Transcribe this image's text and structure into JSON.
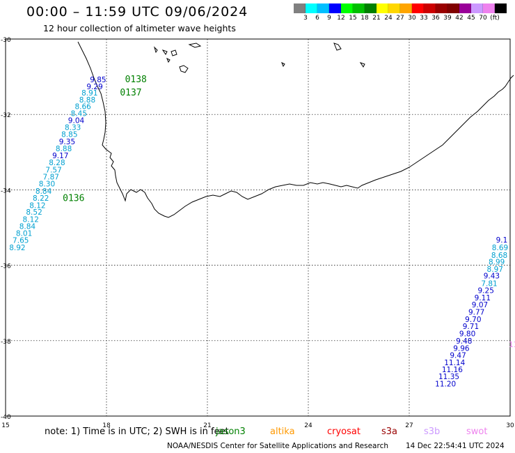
{
  "header": {
    "title": "00:00 – 11:59 UTC 09/06/2024",
    "subtitle": "12 hour collection of altimeter wave heights"
  },
  "legend": {
    "colors": [
      "#808080",
      "#00ffff",
      "#00bfff",
      "#0000ff",
      "#00ff00",
      "#00c000",
      "#008000",
      "#ffff00",
      "#ffd700",
      "#ffa500",
      "#ff0000",
      "#cc0000",
      "#990000",
      "#800000",
      "#990099",
      "#cc99ff",
      "#ee82ee",
      "#000000"
    ],
    "labels": [
      "3",
      "6",
      "9",
      "12",
      "15",
      "18",
      "21",
      "24",
      "27",
      "30",
      "33",
      "36",
      "39",
      "42",
      "45",
      "70",
      "(ft)"
    ]
  },
  "axes": {
    "lon_labels": [
      "15",
      "18",
      "21",
      "24",
      "27",
      "30"
    ],
    "lat_labels": [
      "-30",
      "-32",
      "-34",
      "-36",
      "-38",
      "-40"
    ]
  },
  "map_data": {
    "lon_range": [
      15,
      30
    ],
    "lat_range": [
      -40,
      -30
    ],
    "pass_labels": [
      {
        "text": "0138",
        "lon": 18.55,
        "lat": -31.15
      },
      {
        "text": "0137",
        "lon": 18.4,
        "lat": -31.5
      },
      {
        "text": "0136",
        "lon": 16.7,
        "lat": -34.3
      }
    ],
    "track_west": [
      {
        "v": "9.85",
        "lon": 17.75,
        "lat": -31.15,
        "c": "#0000cc"
      },
      {
        "v": "9.29",
        "lon": 17.65,
        "lat": -31.33,
        "c": "#0000cc"
      },
      {
        "v": "8.91",
        "lon": 17.5,
        "lat": -31.5,
        "c": "#00a0d0"
      },
      {
        "v": "8.88",
        "lon": 17.43,
        "lat": -31.68,
        "c": "#00a0d0"
      },
      {
        "v": "8.66",
        "lon": 17.3,
        "lat": -31.86,
        "c": "#00a0d0"
      },
      {
        "v": "8.45",
        "lon": 17.18,
        "lat": -32.04,
        "c": "#00a0d0"
      },
      {
        "v": "9.04",
        "lon": 17.1,
        "lat": -32.23,
        "c": "#0000cc"
      },
      {
        "v": "8.33",
        "lon": 17.0,
        "lat": -32.41,
        "c": "#00a0d0"
      },
      {
        "v": "8.85",
        "lon": 16.9,
        "lat": -32.6,
        "c": "#00a0d0"
      },
      {
        "v": "9.35",
        "lon": 16.83,
        "lat": -32.79,
        "c": "#0000cc"
      },
      {
        "v": "8.88",
        "lon": 16.73,
        "lat": -32.98,
        "c": "#00a0d0"
      },
      {
        "v": "9.17",
        "lon": 16.63,
        "lat": -33.16,
        "c": "#0000cc"
      },
      {
        "v": "8.28",
        "lon": 16.53,
        "lat": -33.35,
        "c": "#00a0d0"
      },
      {
        "v": "7.57",
        "lon": 16.43,
        "lat": -33.54,
        "c": "#00a0d0"
      },
      {
        "v": "7.87",
        "lon": 16.35,
        "lat": -33.72,
        "c": "#00a0d0"
      },
      {
        "v": "8.30",
        "lon": 16.23,
        "lat": -33.91,
        "c": "#00a0d0"
      },
      {
        "v": "8.84",
        "lon": 16.13,
        "lat": -34.1,
        "c": "#00a0d0"
      },
      {
        "v": "8.22",
        "lon": 16.05,
        "lat": -34.29,
        "c": "#00a0d0"
      },
      {
        "v": "8.12",
        "lon": 15.95,
        "lat": -34.48,
        "c": "#00a0d0"
      },
      {
        "v": "8.52",
        "lon": 15.85,
        "lat": -34.66,
        "c": "#00a0d0"
      },
      {
        "v": "8.12",
        "lon": 15.75,
        "lat": -34.85,
        "c": "#00a0d0"
      },
      {
        "v": "8.84",
        "lon": 15.65,
        "lat": -35.04,
        "c": "#00a0d0"
      },
      {
        "v": "8.01",
        "lon": 15.55,
        "lat": -35.22,
        "c": "#00a0d0"
      },
      {
        "v": "7.65",
        "lon": 15.45,
        "lat": -35.41,
        "c": "#00a0d0"
      },
      {
        "v": "8.92",
        "lon": 15.35,
        "lat": -35.6,
        "c": "#00a0d0"
      }
    ],
    "track_east": [
      {
        "v": "9.1",
        "lon": 29.75,
        "lat": -35.4,
        "c": "#0000cc"
      },
      {
        "v": "8.69",
        "lon": 29.7,
        "lat": -35.6,
        "c": "#00a0d0"
      },
      {
        "v": "8.68",
        "lon": 29.68,
        "lat": -35.8,
        "c": "#00a0d0"
      },
      {
        "v": "8.99",
        "lon": 29.6,
        "lat": -35.98,
        "c": "#00a0d0"
      },
      {
        "v": "8.97",
        "lon": 29.55,
        "lat": -36.17,
        "c": "#00a0d0"
      },
      {
        "v": "9.43",
        "lon": 29.45,
        "lat": -36.35,
        "c": "#0000cc"
      },
      {
        "v": "7.81",
        "lon": 29.38,
        "lat": -36.55,
        "c": "#00a0d0"
      },
      {
        "v": "9.25",
        "lon": 29.28,
        "lat": -36.74,
        "c": "#0000cc"
      },
      {
        "v": "9.11",
        "lon": 29.18,
        "lat": -36.93,
        "c": "#0000cc"
      },
      {
        "v": "9.07",
        "lon": 29.1,
        "lat": -37.12,
        "c": "#0000cc"
      },
      {
        "v": "9.77",
        "lon": 29.0,
        "lat": -37.31,
        "c": "#0000cc"
      },
      {
        "v": "9.70",
        "lon": 28.9,
        "lat": -37.5,
        "c": "#0000cc"
      },
      {
        "v": "9.71",
        "lon": 28.83,
        "lat": -37.69,
        "c": "#0000cc"
      },
      {
        "v": "9.80",
        "lon": 28.73,
        "lat": -37.88,
        "c": "#0000cc"
      },
      {
        "v": "9.48",
        "lon": 28.63,
        "lat": -38.08,
        "c": "#0000cc"
      },
      {
        "v": "9.96",
        "lon": 28.55,
        "lat": -38.27,
        "c": "#0000cc"
      },
      {
        "v": "9.47",
        "lon": 28.45,
        "lat": -38.46,
        "c": "#0000cc"
      },
      {
        "v": "11.14",
        "lon": 28.35,
        "lat": -38.65,
        "c": "#0000cc"
      },
      {
        "v": "11.16",
        "lon": 28.28,
        "lat": -38.84,
        "c": "#0000cc"
      },
      {
        "v": "11.35",
        "lon": 28.18,
        "lat": -39.02,
        "c": "#0000cc"
      },
      {
        "v": "11.20",
        "lon": 28.08,
        "lat": -39.21,
        "c": "#0000cc"
      }
    ]
  },
  "footer": {
    "note": "note: 1) Time is in UTC; 2) SWH is in feet",
    "satellites": [
      {
        "name": "jason3",
        "color": "#008000"
      },
      {
        "name": "altika",
        "color": "#ff9900"
      },
      {
        "name": "cryosat",
        "color": "#ff0000"
      },
      {
        "name": "s3a",
        "color": "#990000"
      },
      {
        "name": "s3b",
        "color": "#cc99ff"
      },
      {
        "name": "swot",
        "color": "#ee82ee"
      }
    ],
    "credit": "NOAA/NESDIS Center for Satellite Applications and Research",
    "timestamp": "14 Dec 22:54:41 UTC 2024"
  }
}
